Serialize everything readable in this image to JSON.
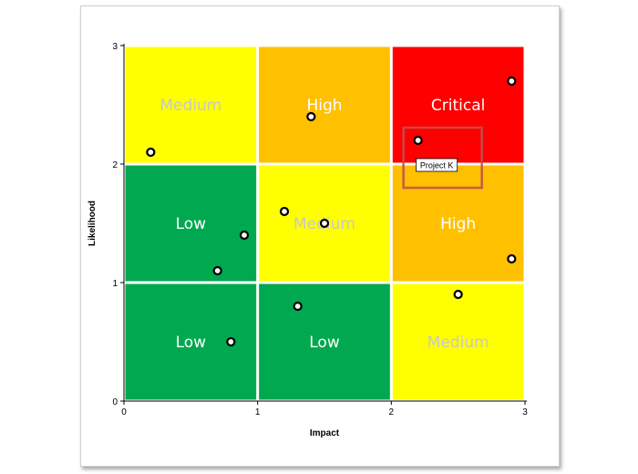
{
  "chart_data": {
    "type": "scatter",
    "title": "",
    "xlabel": "Impact",
    "ylabel": "Likelihood",
    "xlim": [
      0,
      3
    ],
    "ylim": [
      0,
      3
    ],
    "x_ticks": [
      "0",
      "1",
      "2",
      "3"
    ],
    "y_ticks": [
      "0",
      "1",
      "2",
      "3"
    ],
    "grid": false,
    "zones": [
      {
        "col": 0,
        "row": 0,
        "label": "Low",
        "color": "#00a84f",
        "text_color": "#ffffff"
      },
      {
        "col": 1,
        "row": 0,
        "label": "Low",
        "color": "#00a84f",
        "text_color": "#ffffff"
      },
      {
        "col": 2,
        "row": 0,
        "label": "Medium",
        "color": "#ffff00",
        "text_color": "#c8c8c8"
      },
      {
        "col": 0,
        "row": 1,
        "label": "Low",
        "color": "#00a84f",
        "text_color": "#ffffff"
      },
      {
        "col": 1,
        "row": 1,
        "label": "Medium",
        "color": "#ffff00",
        "text_color": "#c8c8c8"
      },
      {
        "col": 2,
        "row": 1,
        "label": "High",
        "color": "#ffc000",
        "text_color": "#ffffff"
      },
      {
        "col": 0,
        "row": 2,
        "label": "Medium",
        "color": "#ffff00",
        "text_color": "#c8c8c8"
      },
      {
        "col": 1,
        "row": 2,
        "label": "High",
        "color": "#ffc000",
        "text_color": "#ffffff"
      },
      {
        "col": 2,
        "row": 2,
        "label": "Critical",
        "color": "#ff0000",
        "text_color": "#ffffff"
      }
    ],
    "points": [
      {
        "x": 0.2,
        "y": 2.1
      },
      {
        "x": 1.4,
        "y": 2.4
      },
      {
        "x": 2.9,
        "y": 2.7
      },
      {
        "x": 2.2,
        "y": 2.2
      },
      {
        "x": 1.2,
        "y": 1.6
      },
      {
        "x": 1.5,
        "y": 1.5
      },
      {
        "x": 0.9,
        "y": 1.4
      },
      {
        "x": 0.7,
        "y": 1.1
      },
      {
        "x": 2.9,
        "y": 1.2
      },
      {
        "x": 2.5,
        "y": 0.9
      },
      {
        "x": 1.3,
        "y": 0.8
      },
      {
        "x": 0.8,
        "y": 0.5
      }
    ],
    "highlight": {
      "x": 2.2,
      "y": 2.2,
      "tooltip": "Project K",
      "box_color": "#c0504d"
    }
  }
}
